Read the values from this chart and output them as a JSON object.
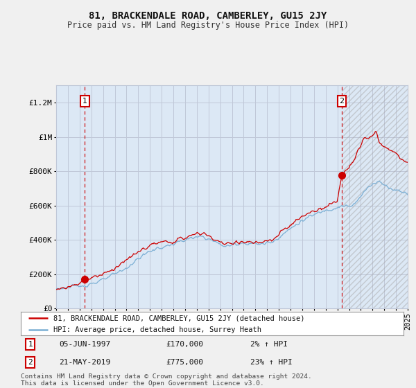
{
  "title": "81, BRACKENDALE ROAD, CAMBERLEY, GU15 2JY",
  "subtitle": "Price paid vs. HM Land Registry's House Price Index (HPI)",
  "legend_line1": "81, BRACKENDALE ROAD, CAMBERLEY, GU15 2JY (detached house)",
  "legend_line2": "HPI: Average price, detached house, Surrey Heath",
  "annotation1_label": "1",
  "annotation1_date": "05-JUN-1997",
  "annotation1_price": "£170,000",
  "annotation1_hpi": "2% ↑ HPI",
  "annotation2_label": "2",
  "annotation2_date": "21-MAY-2019",
  "annotation2_price": "£775,000",
  "annotation2_hpi": "23% ↑ HPI",
  "footnote": "Contains HM Land Registry data © Crown copyright and database right 2024.\nThis data is licensed under the Open Government Licence v3.0.",
  "sale_color": "#cc0000",
  "hpi_color": "#7bafd4",
  "background_color": "#f0f0f0",
  "plot_background": "#dce8f5",
  "grid_color": "#c0c8d8",
  "ylim": [
    0,
    1300000
  ],
  "yticks": [
    0,
    200000,
    400000,
    600000,
    800000,
    1000000,
    1200000
  ],
  "ytick_labels": [
    "£0",
    "£200K",
    "£400K",
    "£600K",
    "£800K",
    "£1M",
    "£1.2M"
  ],
  "sale1_year": 1997.44,
  "sale1_price": 170000,
  "sale2_year": 2019.38,
  "sale2_price": 775000,
  "xmin": 1995,
  "xmax": 2025
}
